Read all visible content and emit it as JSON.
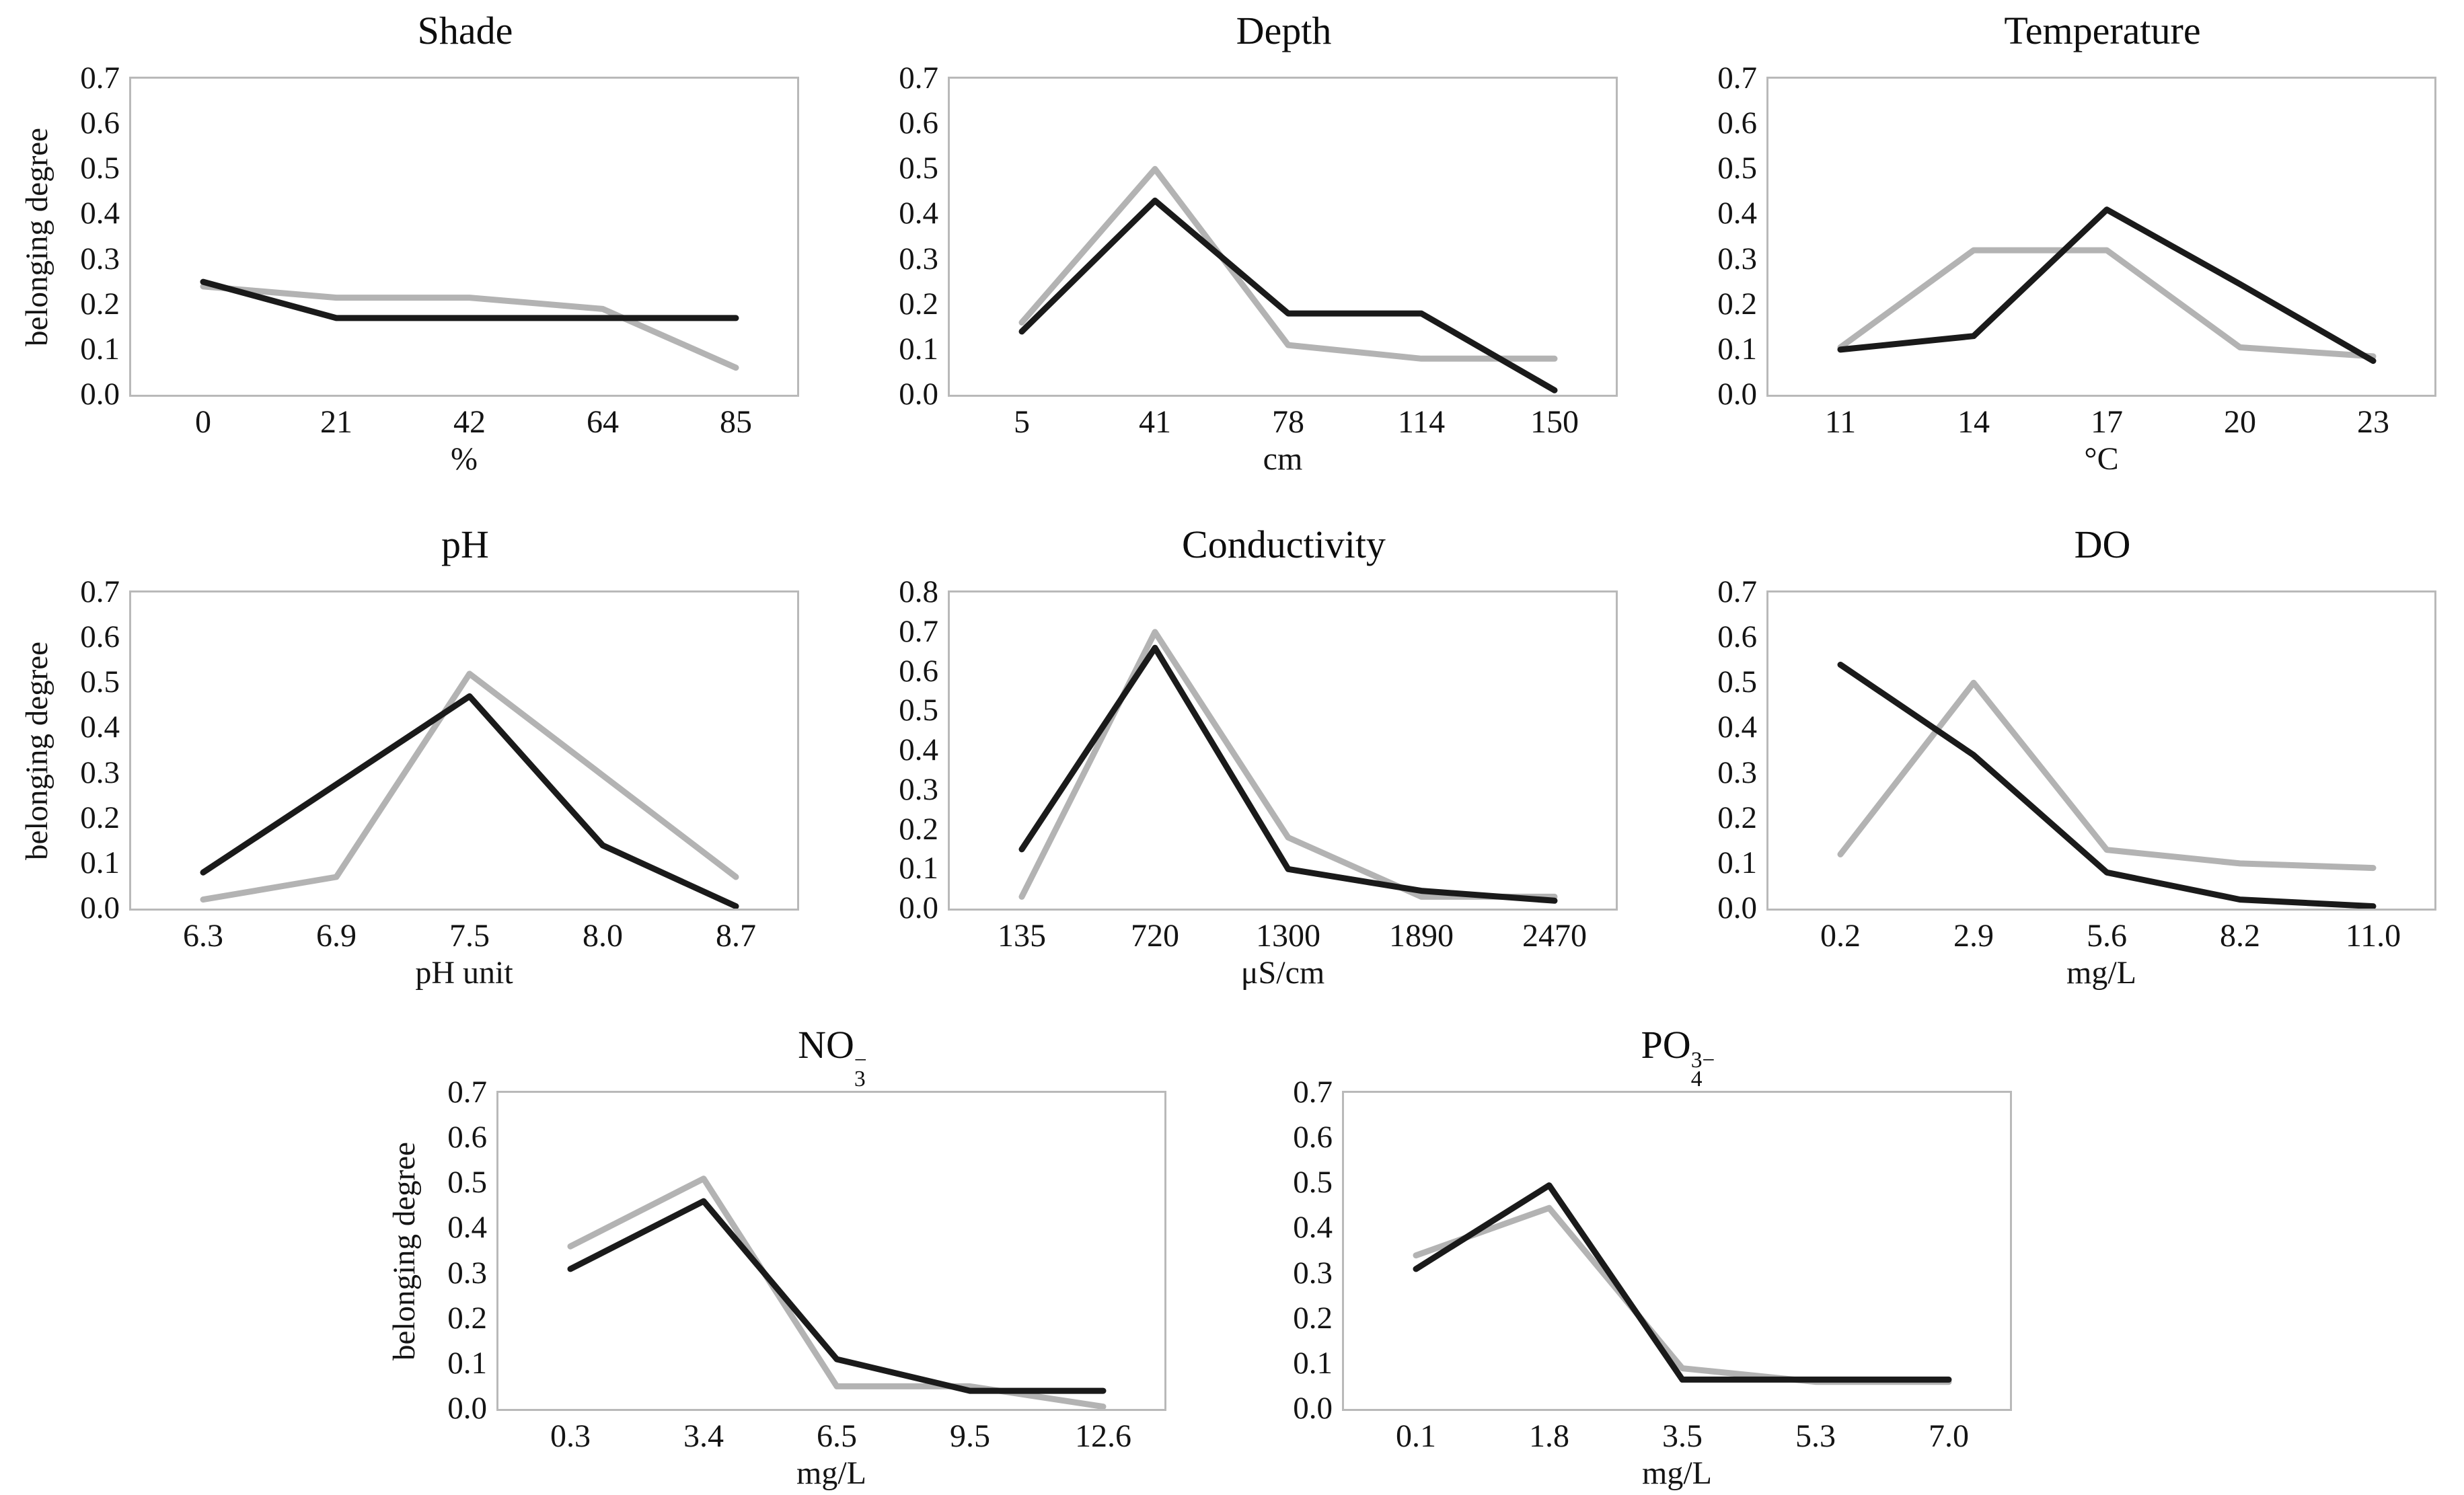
{
  "figure": {
    "description": "Panel of eight fuzzy membership line charts",
    "y_axis_title": "belonging degree",
    "legend": "none",
    "grid": false,
    "background": "#ffffff"
  },
  "colors": {
    "black_series": "#1a1a1a",
    "gray_series": "#b3b3b3",
    "frame_border": "#b9b9b9",
    "text": "#141414"
  },
  "chart_data": [
    {
      "type": "line",
      "row": 1,
      "title": {
        "base": "Shade",
        "sup": "",
        "sub": ""
      },
      "xlabel": "%",
      "ylabel": "belonging degree",
      "ylim": [
        0,
        0.7
      ],
      "yticks": [
        "0.0",
        "0.1",
        "0.2",
        "0.3",
        "0.4",
        "0.5",
        "0.6",
        "0.7"
      ],
      "categories": [
        "0",
        "21",
        "42",
        "64",
        "85"
      ],
      "series": [
        {
          "name": "gray",
          "color": "#b3b3b3",
          "values": [
            0.24,
            0.215,
            0.215,
            0.19,
            0.06
          ]
        },
        {
          "name": "black",
          "color": "#1a1a1a",
          "values": [
            0.25,
            0.17,
            0.17,
            0.17,
            0.17
          ]
        }
      ]
    },
    {
      "type": "line",
      "row": 1,
      "title": {
        "base": "Depth",
        "sup": "",
        "sub": ""
      },
      "xlabel": "cm",
      "ylabel": "",
      "ylim": [
        0,
        0.7
      ],
      "yticks": [
        "0.0",
        "0.1",
        "0.2",
        "0.3",
        "0.4",
        "0.5",
        "0.6",
        "0.7"
      ],
      "categories": [
        "5",
        "41",
        "78",
        "114",
        "150"
      ],
      "series": [
        {
          "name": "gray",
          "color": "#b3b3b3",
          "values": [
            0.16,
            0.5,
            0.11,
            0.08,
            0.08
          ]
        },
        {
          "name": "black",
          "color": "#1a1a1a",
          "values": [
            0.14,
            0.43,
            0.18,
            0.18,
            0.01
          ]
        }
      ]
    },
    {
      "type": "line",
      "row": 1,
      "title": {
        "base": "Temperature",
        "sup": "",
        "sub": ""
      },
      "xlabel": "°C",
      "ylabel": "",
      "ylim": [
        0,
        0.7
      ],
      "yticks": [
        "0.0",
        "0.1",
        "0.2",
        "0.3",
        "0.4",
        "0.5",
        "0.6",
        "0.7"
      ],
      "categories": [
        "11",
        "14",
        "17",
        "20",
        "23"
      ],
      "series": [
        {
          "name": "gray",
          "color": "#b3b3b3",
          "values": [
            0.105,
            0.32,
            0.32,
            0.105,
            0.085
          ]
        },
        {
          "name": "black",
          "color": "#1a1a1a",
          "values": [
            0.1,
            0.13,
            0.41,
            0.245,
            0.075
          ]
        }
      ]
    },
    {
      "type": "line",
      "row": 2,
      "title": {
        "base": "pH",
        "sup": "",
        "sub": ""
      },
      "xlabel": "pH unit",
      "ylabel": "belonging degree",
      "ylim": [
        0,
        0.7
      ],
      "yticks": [
        "0.0",
        "0.1",
        "0.2",
        "0.3",
        "0.4",
        "0.5",
        "0.6",
        "0.7"
      ],
      "categories": [
        "6.3",
        "6.9",
        "7.5",
        "8.0",
        "8.7"
      ],
      "series": [
        {
          "name": "gray",
          "color": "#b3b3b3",
          "values": [
            0.02,
            0.07,
            0.52,
            0.295,
            0.07
          ]
        },
        {
          "name": "black",
          "color": "#1a1a1a",
          "values": [
            0.08,
            0.275,
            0.47,
            0.14,
            0.005
          ]
        }
      ]
    },
    {
      "type": "line",
      "row": 2,
      "title": {
        "base": "Conductivity",
        "sup": "",
        "sub": ""
      },
      "xlabel": "μS/cm",
      "ylabel": "",
      "ylim": [
        0,
        0.8
      ],
      "yticks": [
        "0.0",
        "0.1",
        "0.2",
        "0.3",
        "0.4",
        "0.5",
        "0.6",
        "0.7",
        "0.8"
      ],
      "categories": [
        "135",
        "720",
        "1300",
        "1890",
        "2470"
      ],
      "series": [
        {
          "name": "gray",
          "color": "#b3b3b3",
          "values": [
            0.03,
            0.7,
            0.18,
            0.03,
            0.03
          ]
        },
        {
          "name": "black",
          "color": "#1a1a1a",
          "values": [
            0.15,
            0.66,
            0.1,
            0.045,
            0.02
          ]
        }
      ]
    },
    {
      "type": "line",
      "row": 2,
      "title": {
        "base": "DO",
        "sup": "",
        "sub": ""
      },
      "xlabel": "mg/L",
      "ylabel": "",
      "ylim": [
        0,
        0.7
      ],
      "yticks": [
        "0.0",
        "0.1",
        "0.2",
        "0.3",
        "0.4",
        "0.5",
        "0.6",
        "0.7"
      ],
      "categories": [
        "0.2",
        "2.9",
        "5.6",
        "8.2",
        "11.0"
      ],
      "series": [
        {
          "name": "gray",
          "color": "#b3b3b3",
          "values": [
            0.12,
            0.5,
            0.13,
            0.1,
            0.09
          ]
        },
        {
          "name": "black",
          "color": "#1a1a1a",
          "values": [
            0.54,
            0.34,
            0.08,
            0.02,
            0.005
          ]
        }
      ]
    },
    {
      "type": "line",
      "row": 3,
      "title": {
        "base": "NO",
        "sup": "−",
        "sub": "3"
      },
      "xlabel": "mg/L",
      "ylabel": "belonging degree",
      "ylim": [
        0,
        0.7
      ],
      "yticks": [
        "0.0",
        "0.1",
        "0.2",
        "0.3",
        "0.4",
        "0.5",
        "0.6",
        "0.7"
      ],
      "categories": [
        "0.3",
        "3.4",
        "6.5",
        "9.5",
        "12.6"
      ],
      "series": [
        {
          "name": "gray",
          "color": "#b3b3b3",
          "values": [
            0.36,
            0.51,
            0.05,
            0.05,
            0.005
          ]
        },
        {
          "name": "black",
          "color": "#1a1a1a",
          "values": [
            0.31,
            0.46,
            0.11,
            0.04,
            0.04
          ]
        }
      ]
    },
    {
      "type": "line",
      "row": 3,
      "title": {
        "base": "PO",
        "sup": "3−",
        "sub": "4"
      },
      "xlabel": "mg/L",
      "ylabel": "",
      "ylim": [
        0,
        0.7
      ],
      "yticks": [
        "0.0",
        "0.1",
        "0.2",
        "0.3",
        "0.4",
        "0.5",
        "0.6",
        "0.7"
      ],
      "categories": [
        "0.1",
        "1.8",
        "3.5",
        "5.3",
        "7.0"
      ],
      "series": [
        {
          "name": "gray",
          "color": "#b3b3b3",
          "values": [
            0.34,
            0.445,
            0.09,
            0.06,
            0.06
          ]
        },
        {
          "name": "black",
          "color": "#1a1a1a",
          "values": [
            0.31,
            0.495,
            0.065,
            0.065,
            0.065
          ]
        }
      ]
    }
  ]
}
